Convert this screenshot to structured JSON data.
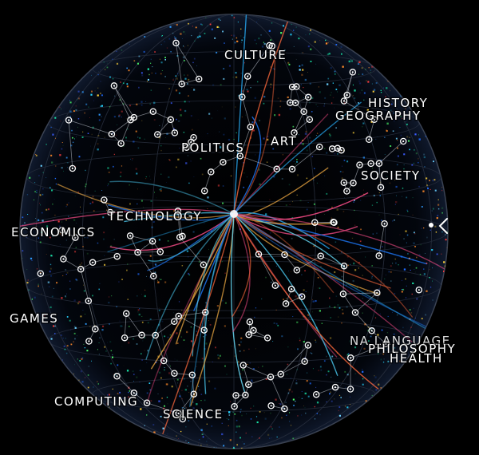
{
  "topics": {
    "culture": "CULTURE",
    "history": "HISTORY",
    "geography": "GEOGRAPHY",
    "politics": "POLITICS",
    "art": "ART",
    "society": "SOCIETY",
    "technology": "TECHNOLOGY",
    "economics": "ECONOMICS",
    "games": "GAMES",
    "language_overlap": "NA LANGUAGE",
    "philosophy": "PHILOSOPHY",
    "health": "HEALTH",
    "computing": "COMPUTING",
    "science": "SCIENCE"
  },
  "nav": {
    "arrow_icon": "chevron-left-icon"
  },
  "colors": {
    "background": "#000000",
    "node": "#ffffff",
    "edge": "#cfd6e0",
    "hub_rays": [
      "#2ab3ff",
      "#4fd6ff",
      "#1e7bff",
      "#ff6a3d",
      "#ffb547",
      "#ff4f8b",
      "#6be3ff"
    ]
  }
}
